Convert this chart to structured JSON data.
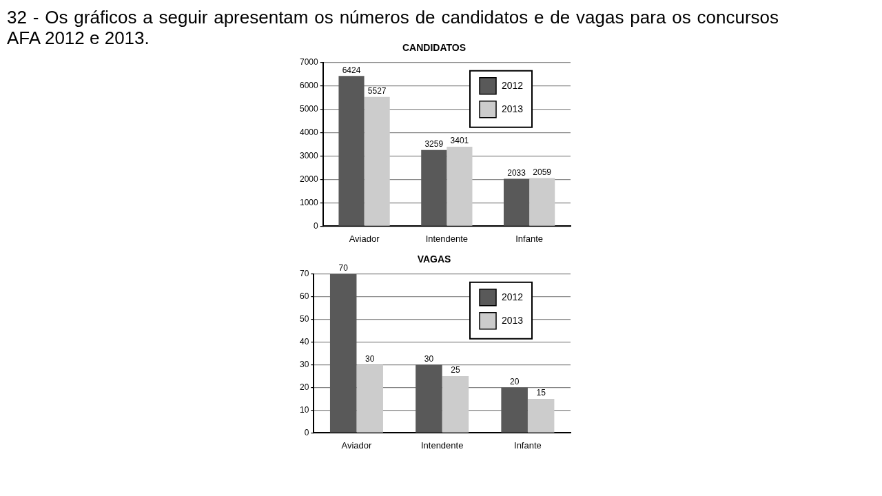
{
  "chart_data": [
    {
      "type": "bar",
      "title": "CANDIDATOS",
      "categories": [
        "Aviador",
        "Intendente",
        "Infante"
      ],
      "series": [
        {
          "name": "2012",
          "color": "#595959",
          "values": [
            6424,
            3259,
            2033
          ]
        },
        {
          "name": "2013",
          "color": "#cccccc",
          "values": [
            5527,
            3401,
            2059
          ]
        }
      ],
      "ylim": [
        0,
        7000
      ],
      "yticks": [
        0,
        1000,
        2000,
        3000,
        4000,
        5000,
        6000,
        7000
      ],
      "grid": "y",
      "legend": "top right",
      "data_labels": true,
      "annotations": [
        "32 - Os gráficos a seguir apresentam os números de candidatos e de vagas para os concursos AFA 2012 e 2013."
      ]
    },
    {
      "type": "bar",
      "title": "VAGAS",
      "categories": [
        "Aviador",
        "Intendente",
        "Infante"
      ],
      "series": [
        {
          "name": "2012",
          "color": "#595959",
          "values": [
            70,
            30,
            20
          ]
        },
        {
          "name": "2013",
          "color": "#cccccc",
          "values": [
            30,
            25,
            15
          ]
        }
      ],
      "ylim": [
        0,
        70
      ],
      "yticks": [
        0,
        10,
        20,
        30,
        40,
        50,
        60,
        70
      ],
      "grid": "y",
      "legend": "top right",
      "data_labels": true
    }
  ]
}
